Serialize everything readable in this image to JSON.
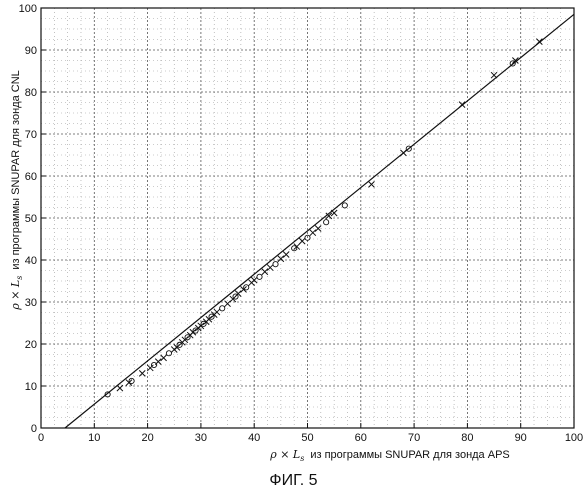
{
  "chart_data": {
    "type": "scatter",
    "xlim": [
      0,
      100
    ],
    "ylim": [
      0,
      100
    ],
    "x_ticks": [
      0,
      10,
      20,
      30,
      40,
      50,
      60,
      70,
      80,
      90,
      100
    ],
    "y_ticks": [
      0,
      10,
      20,
      30,
      40,
      50,
      60,
      70,
      80,
      90,
      100
    ],
    "grid": true,
    "grid_style": "dotted",
    "xlabel": {
      "prefix": "ρ × L",
      "subscript": "s",
      "text": "из программы SNUPAR  для зонда APS"
    },
    "ylabel": {
      "prefix": "ρ × L",
      "subscript": "s",
      "text": "из программы SNUPAR  для зонда CNL"
    },
    "fit_line": {
      "start": [
        4.5,
        0
      ],
      "end": [
        100,
        98.5
      ]
    },
    "points": [
      {
        "x": 12.5,
        "y": 8.0
      },
      {
        "x": 14.8,
        "y": 9.5
      },
      {
        "x": 16.5,
        "y": 10.8
      },
      {
        "x": 17.0,
        "y": 11.2
      },
      {
        "x": 19.0,
        "y": 13.0
      },
      {
        "x": 20.5,
        "y": 14.3
      },
      {
        "x": 21.2,
        "y": 15.0
      },
      {
        "x": 22.0,
        "y": 15.8
      },
      {
        "x": 23.0,
        "y": 16.7
      },
      {
        "x": 24.0,
        "y": 17.8
      },
      {
        "x": 25.0,
        "y": 18.7
      },
      {
        "x": 25.5,
        "y": 19.2
      },
      {
        "x": 26.0,
        "y": 19.8
      },
      {
        "x": 26.5,
        "y": 20.4
      },
      {
        "x": 27.0,
        "y": 21.0
      },
      {
        "x": 27.5,
        "y": 21.6
      },
      {
        "x": 28.0,
        "y": 22.1
      },
      {
        "x": 28.5,
        "y": 22.8
      },
      {
        "x": 29.0,
        "y": 23.2
      },
      {
        "x": 29.5,
        "y": 23.8
      },
      {
        "x": 30.0,
        "y": 24.3
      },
      {
        "x": 30.5,
        "y": 24.8
      },
      {
        "x": 31.0,
        "y": 25.3
      },
      {
        "x": 31.5,
        "y": 25.9
      },
      {
        "x": 32.0,
        "y": 26.5
      },
      {
        "x": 32.5,
        "y": 27.0
      },
      {
        "x": 33.0,
        "y": 27.6
      },
      {
        "x": 34.0,
        "y": 28.5
      },
      {
        "x": 35.0,
        "y": 29.6
      },
      {
        "x": 36.0,
        "y": 30.7
      },
      {
        "x": 36.5,
        "y": 31.3
      },
      {
        "x": 37.0,
        "y": 32.0
      },
      {
        "x": 38.0,
        "y": 33.0
      },
      {
        "x": 38.5,
        "y": 33.5
      },
      {
        "x": 39.5,
        "y": 34.6
      },
      {
        "x": 40.0,
        "y": 35.2
      },
      {
        "x": 41.0,
        "y": 36.0
      },
      {
        "x": 42.0,
        "y": 37.2
      },
      {
        "x": 43.0,
        "y": 38.2
      },
      {
        "x": 44.0,
        "y": 39.0
      },
      {
        "x": 45.0,
        "y": 40.3
      },
      {
        "x": 46.0,
        "y": 41.3
      },
      {
        "x": 47.5,
        "y": 42.8
      },
      {
        "x": 48.0,
        "y": 43.2
      },
      {
        "x": 49.0,
        "y": 44.5
      },
      {
        "x": 50.0,
        "y": 45.3
      },
      {
        "x": 51.0,
        "y": 46.5
      },
      {
        "x": 52.0,
        "y": 47.5
      },
      {
        "x": 53.5,
        "y": 49.0
      },
      {
        "x": 54.0,
        "y": 50.5
      },
      {
        "x": 55.0,
        "y": 51.2
      },
      {
        "x": 57.0,
        "y": 53.0
      },
      {
        "x": 62.0,
        "y": 58.0
      },
      {
        "x": 68.0,
        "y": 65.5
      },
      {
        "x": 69.0,
        "y": 66.5
      },
      {
        "x": 79.0,
        "y": 77.0
      },
      {
        "x": 85.0,
        "y": 84.0
      },
      {
        "x": 88.5,
        "y": 86.8
      },
      {
        "x": 89.0,
        "y": 87.5
      },
      {
        "x": 93.5,
        "y": 92.0
      }
    ]
  },
  "caption": "ФИГ. 5"
}
